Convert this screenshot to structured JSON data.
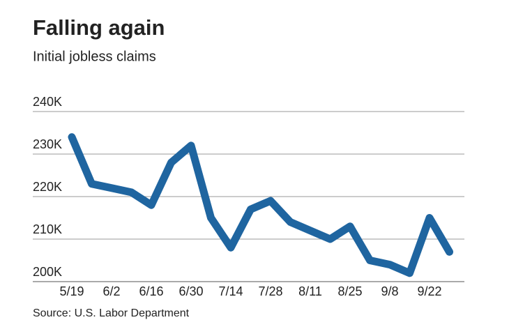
{
  "chart_data": {
    "type": "line",
    "title": "Falling again",
    "subtitle": "Initial jobless claims",
    "source": "Source: U.S. Labor Department",
    "categories": [
      "5/19",
      null,
      "6/2",
      null,
      "6/16",
      null,
      "6/30",
      null,
      "7/14",
      null,
      "7/28",
      null,
      "8/11",
      null,
      "8/25",
      null,
      "9/8",
      null,
      "9/22",
      null
    ],
    "series": [
      {
        "color": "#1f65a0",
        "values": [
          234000,
          223000,
          222000,
          221000,
          218000,
          228000,
          232000,
          215000,
          208000,
          217000,
          219000,
          214000,
          212000,
          210000,
          213000,
          205000,
          204000,
          202000,
          215000,
          207000
        ]
      }
    ],
    "ylim": [
      200000,
      240000
    ],
    "yticks": [
      {
        "value": 200000,
        "label": "200K"
      },
      {
        "value": 210000,
        "label": "210K"
      },
      {
        "value": 220000,
        "label": "220K"
      },
      {
        "value": 230000,
        "label": "230K"
      },
      {
        "value": 240000,
        "label": "240K"
      }
    ],
    "grid": true
  }
}
